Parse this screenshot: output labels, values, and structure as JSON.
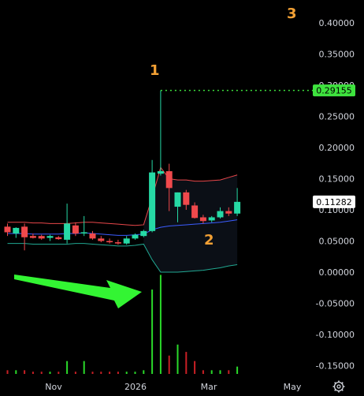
{
  "colors": {
    "background": "#000000",
    "up": "#26d9a5",
    "down": "#f0494c",
    "volume_up": "#2ad92a",
    "volume_down": "#c91f25",
    "bb_upper": "#e8474a",
    "bb_lower": "#21a892",
    "bb_fill": "#0b0f16",
    "ma": "#3b5cff",
    "price_badge": "#ffffff",
    "high_badge": "#3ee33e",
    "arrow": "#33f533",
    "annotation": "#f2a034"
  },
  "chart_data": {
    "type": "candlestick",
    "ylim": [
      -0.175,
      0.425
    ],
    "yticks": [
      "0.40000",
      "0.35000",
      "0.30000",
      "0.25000",
      "0.20000",
      "0.15000",
      "0.10000",
      "0.05000",
      "0.00000",
      "-0.05000",
      "-0.10000",
      "-0.15000"
    ],
    "ytick_values": [
      0.4,
      0.35,
      0.3,
      0.25,
      0.2,
      0.15,
      0.1,
      0.05,
      0.0,
      -0.05,
      -0.1,
      -0.15
    ],
    "xticks": [
      "Nov",
      "2026",
      "Mar",
      "May"
    ],
    "last_price_label": "0.11282",
    "last_price": 0.11282,
    "high_label": "0.29155",
    "high_value": 0.29155,
    "annotations": [
      "1",
      "2",
      "3"
    ],
    "candles": [
      {
        "o": 0.073,
        "h": 0.078,
        "l": 0.058,
        "c": 0.064
      },
      {
        "o": 0.062,
        "h": 0.072,
        "l": 0.055,
        "c": 0.071
      },
      {
        "o": 0.073,
        "h": 0.078,
        "l": 0.035,
        "c": 0.056
      },
      {
        "o": 0.058,
        "h": 0.062,
        "l": 0.054,
        "c": 0.055
      },
      {
        "o": 0.058,
        "h": 0.06,
        "l": 0.052,
        "c": 0.054
      },
      {
        "o": 0.055,
        "h": 0.06,
        "l": 0.05,
        "c": 0.058
      },
      {
        "o": 0.056,
        "h": 0.058,
        "l": 0.052,
        "c": 0.053
      },
      {
        "o": 0.052,
        "h": 0.11,
        "l": 0.046,
        "c": 0.078
      },
      {
        "o": 0.075,
        "h": 0.08,
        "l": 0.058,
        "c": 0.062
      },
      {
        "o": 0.062,
        "h": 0.09,
        "l": 0.058,
        "c": 0.064
      },
      {
        "o": 0.062,
        "h": 0.066,
        "l": 0.052,
        "c": 0.054
      },
      {
        "o": 0.054,
        "h": 0.058,
        "l": 0.048,
        "c": 0.05
      },
      {
        "o": 0.05,
        "h": 0.054,
        "l": 0.046,
        "c": 0.048
      },
      {
        "o": 0.048,
        "h": 0.052,
        "l": 0.044,
        "c": 0.046
      },
      {
        "o": 0.046,
        "h": 0.058,
        "l": 0.044,
        "c": 0.054
      },
      {
        "o": 0.054,
        "h": 0.062,
        "l": 0.052,
        "c": 0.06
      },
      {
        "o": 0.058,
        "h": 0.068,
        "l": 0.056,
        "c": 0.066
      },
      {
        "o": 0.066,
        "h": 0.18,
        "l": 0.064,
        "c": 0.16
      },
      {
        "o": 0.158,
        "h": 0.29155,
        "l": 0.155,
        "c": 0.162
      },
      {
        "o": 0.162,
        "h": 0.174,
        "l": 0.098,
        "c": 0.135
      },
      {
        "o": 0.105,
        "h": 0.128,
        "l": 0.08,
        "c": 0.128
      },
      {
        "o": 0.128,
        "h": 0.132,
        "l": 0.1,
        "c": 0.108
      },
      {
        "o": 0.107,
        "h": 0.112,
        "l": 0.086,
        "c": 0.087
      },
      {
        "o": 0.088,
        "h": 0.092,
        "l": 0.078,
        "c": 0.082
      },
      {
        "o": 0.083,
        "h": 0.09,
        "l": 0.08,
        "c": 0.088
      },
      {
        "o": 0.088,
        "h": 0.104,
        "l": 0.086,
        "c": 0.098
      },
      {
        "o": 0.098,
        "h": 0.104,
        "l": 0.09,
        "c": 0.094
      },
      {
        "o": 0.094,
        "h": 0.135,
        "l": 0.09,
        "c": 0.11282
      }
    ],
    "volumes": [
      0.01,
      0.01,
      0.01,
      0.006,
      0.006,
      0.006,
      0.006,
      0.035,
      0.006,
      0.035,
      0.006,
      0.006,
      0.006,
      0.006,
      0.006,
      0.006,
      0.01,
      0.23,
      0.27,
      0.05,
      0.08,
      0.06,
      0.035,
      0.01,
      0.01,
      0.01,
      0.01,
      0.02
    ],
    "bb_upper": [
      0.08,
      0.08,
      0.08,
      0.079,
      0.079,
      0.078,
      0.078,
      0.078,
      0.079,
      0.08,
      0.08,
      0.079,
      0.078,
      0.077,
      0.076,
      0.075,
      0.076,
      0.12,
      0.168,
      0.15,
      0.148,
      0.148,
      0.146,
      0.146,
      0.147,
      0.148,
      0.152,
      0.156
    ],
    "bb_basis": [
      0.062,
      0.062,
      0.062,
      0.061,
      0.061,
      0.061,
      0.061,
      0.062,
      0.062,
      0.063,
      0.062,
      0.061,
      0.06,
      0.059,
      0.059,
      0.06,
      0.061,
      0.068,
      0.072,
      0.074,
      0.075,
      0.076,
      0.077,
      0.078,
      0.079,
      0.08,
      0.082,
      0.084
    ],
    "bb_lower": [
      0.046,
      0.046,
      0.046,
      0.045,
      0.045,
      0.045,
      0.045,
      0.045,
      0.046,
      0.046,
      0.045,
      0.044,
      0.043,
      0.042,
      0.042,
      0.043,
      0.045,
      0.02,
      0.0,
      0.0,
      0.0,
      0.001,
      0.002,
      0.003,
      0.005,
      0.007,
      0.01,
      0.012
    ]
  }
}
